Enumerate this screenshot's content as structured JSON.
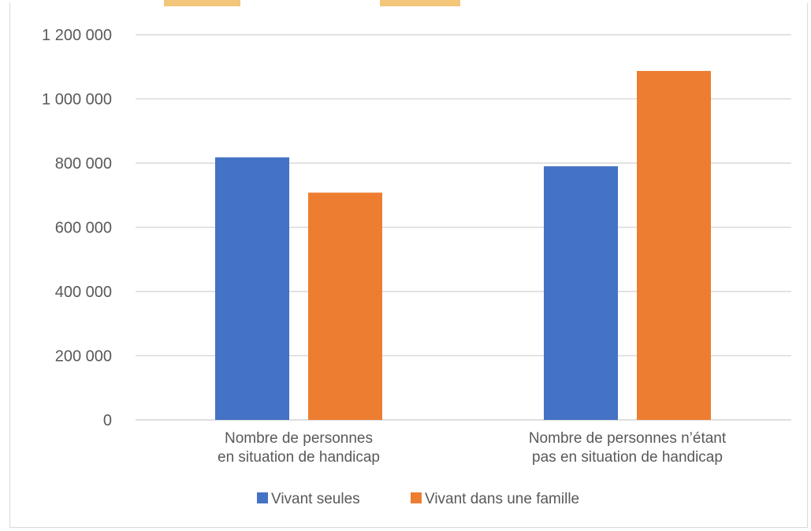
{
  "chart_data": {
    "type": "bar",
    "title": "",
    "xlabel": "",
    "ylabel": "",
    "categories": [
      [
        "Nombre de personnes",
        "en situation de handicap"
      ],
      [
        "Nombre de personnes n’étant",
        "pas en situation de handicap"
      ]
    ],
    "series": [
      {
        "name": "Vivant seules",
        "color": "#4472c4",
        "values": [
          818000,
          790000
        ]
      },
      {
        "name": "Vivant dans une famille",
        "color": "#ed7d31",
        "values": [
          708000,
          1087000
        ]
      }
    ],
    "ylim": [
      0,
      1200000
    ],
    "yticks": [
      0,
      200000,
      400000,
      600000,
      800000,
      1000000,
      1200000
    ],
    "ytick_labels": [
      "0",
      "200 000",
      "400 000",
      "600 000",
      "800 000",
      "1 000 000",
      "1 200 000"
    ],
    "grid": true,
    "legend_position": "bottom"
  },
  "colors": {
    "gridline": "#d9d9d9",
    "axis_text": "#595959",
    "top_tab": "#f3c67a"
  }
}
